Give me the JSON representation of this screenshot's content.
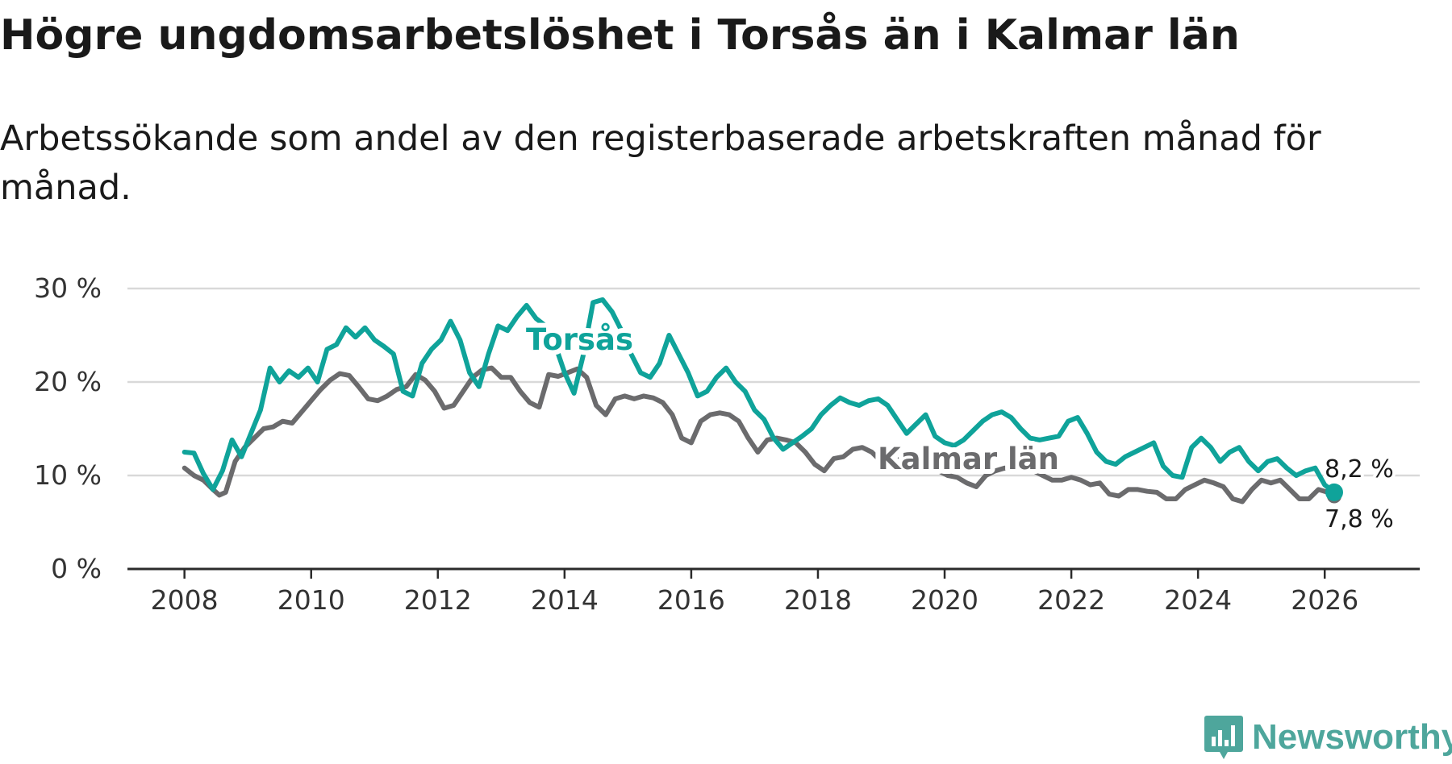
{
  "title": "Högre ungdomsarbetslöshet i Torsås än i Kalmar län",
  "subtitle": "Arbetssökande som andel av den registerbaserade arbetskraften månad för månad.",
  "brand": {
    "name": "Newsworthy",
    "color": "#4ea69c"
  },
  "chart_data": {
    "type": "line",
    "title": "Högre ungdomsarbetslöshet i Torsås än i Kalmar län",
    "subtitle": "Arbetssökande som andel av den registerbaserade arbetskraften månad för månad.",
    "xlabel": "",
    "ylabel": "",
    "xlim": [
      2007.1,
      2027.5
    ],
    "ylim": [
      0,
      30
    ],
    "x_ticks": [
      2008,
      2010,
      2012,
      2014,
      2016,
      2018,
      2020,
      2022,
      2024,
      2026
    ],
    "x_tick_labels": [
      "2008",
      "2010",
      "2012",
      "2014",
      "2016",
      "2018",
      "2020",
      "2022",
      "2024",
      "2026"
    ],
    "y_ticks": [
      0,
      10,
      20,
      30
    ],
    "y_tick_labels": [
      "0 %",
      "10 %",
      "20 %",
      "30 %"
    ],
    "grid": true,
    "series": [
      {
        "name": "Torsås",
        "color": "#0fa39a",
        "end_label": "8,2 %",
        "points": [
          [
            2008.0,
            12.5
          ],
          [
            2008.15,
            12.4
          ],
          [
            2008.3,
            10.2
          ],
          [
            2008.45,
            8.5
          ],
          [
            2008.6,
            10.5
          ],
          [
            2008.75,
            13.8
          ],
          [
            2008.9,
            12.0
          ],
          [
            2009.05,
            14.5
          ],
          [
            2009.2,
            17.0
          ],
          [
            2009.35,
            21.5
          ],
          [
            2009.5,
            20.0
          ],
          [
            2009.65,
            21.2
          ],
          [
            2009.8,
            20.5
          ],
          [
            2009.95,
            21.5
          ],
          [
            2010.1,
            20.0
          ],
          [
            2010.25,
            23.5
          ],
          [
            2010.4,
            24.0
          ],
          [
            2010.55,
            25.8
          ],
          [
            2010.7,
            24.8
          ],
          [
            2010.85,
            25.8
          ],
          [
            2011.0,
            24.5
          ],
          [
            2011.15,
            23.8
          ],
          [
            2011.3,
            23.0
          ],
          [
            2011.45,
            19.0
          ],
          [
            2011.6,
            18.5
          ],
          [
            2011.75,
            22.0
          ],
          [
            2011.9,
            23.5
          ],
          [
            2012.05,
            24.5
          ],
          [
            2012.2,
            26.5
          ],
          [
            2012.35,
            24.5
          ],
          [
            2012.5,
            21.0
          ],
          [
            2012.65,
            19.5
          ],
          [
            2012.8,
            23.0
          ],
          [
            2012.95,
            26.0
          ],
          [
            2013.1,
            25.5
          ],
          [
            2013.25,
            27.0
          ],
          [
            2013.4,
            28.2
          ],
          [
            2013.55,
            26.8
          ],
          [
            2013.7,
            26.0
          ],
          [
            2013.85,
            24.0
          ],
          [
            2014.0,
            21.0
          ],
          [
            2014.15,
            18.8
          ],
          [
            2014.3,
            23.0
          ],
          [
            2014.45,
            28.5
          ],
          [
            2014.6,
            28.8
          ],
          [
            2014.75,
            27.5
          ],
          [
            2014.9,
            25.5
          ],
          [
            2015.05,
            23.0
          ],
          [
            2015.2,
            21.0
          ],
          [
            2015.35,
            20.5
          ],
          [
            2015.5,
            22.0
          ],
          [
            2015.65,
            25.0
          ],
          [
            2015.8,
            23.0
          ],
          [
            2015.95,
            21.0
          ],
          [
            2016.1,
            18.5
          ],
          [
            2016.25,
            19.0
          ],
          [
            2016.4,
            20.5
          ],
          [
            2016.55,
            21.5
          ],
          [
            2016.7,
            20.0
          ],
          [
            2016.85,
            19.0
          ],
          [
            2017.0,
            17.0
          ],
          [
            2017.15,
            16.0
          ],
          [
            2017.3,
            14.0
          ],
          [
            2017.45,
            12.8
          ],
          [
            2017.6,
            13.5
          ],
          [
            2017.75,
            14.2
          ],
          [
            2017.9,
            15.0
          ],
          [
            2018.05,
            16.5
          ],
          [
            2018.2,
            17.5
          ],
          [
            2018.35,
            18.3
          ],
          [
            2018.5,
            17.8
          ],
          [
            2018.65,
            17.5
          ],
          [
            2018.8,
            18.0
          ],
          [
            2018.95,
            18.2
          ],
          [
            2019.1,
            17.5
          ],
          [
            2019.25,
            16.0
          ],
          [
            2019.4,
            14.5
          ],
          [
            2019.55,
            15.5
          ],
          [
            2019.7,
            16.5
          ],
          [
            2019.85,
            14.2
          ],
          [
            2020.0,
            13.5
          ],
          [
            2020.15,
            13.2
          ],
          [
            2020.3,
            13.8
          ],
          [
            2020.45,
            14.8
          ],
          [
            2020.6,
            15.8
          ],
          [
            2020.75,
            16.5
          ],
          [
            2020.9,
            16.8
          ],
          [
            2021.05,
            16.2
          ],
          [
            2021.2,
            15.0
          ],
          [
            2021.35,
            14.0
          ],
          [
            2021.5,
            13.8
          ],
          [
            2021.65,
            14.0
          ],
          [
            2021.8,
            14.2
          ],
          [
            2021.95,
            15.8
          ],
          [
            2022.1,
            16.2
          ],
          [
            2022.25,
            14.5
          ],
          [
            2022.4,
            12.5
          ],
          [
            2022.55,
            11.5
          ],
          [
            2022.7,
            11.2
          ],
          [
            2022.85,
            12.0
          ],
          [
            2023.0,
            12.5
          ],
          [
            2023.15,
            13.0
          ],
          [
            2023.3,
            13.5
          ],
          [
            2023.45,
            11.0
          ],
          [
            2023.6,
            10.0
          ],
          [
            2023.75,
            9.8
          ],
          [
            2023.9,
            13.0
          ],
          [
            2024.05,
            14.0
          ],
          [
            2024.2,
            13.0
          ],
          [
            2024.35,
            11.5
          ],
          [
            2024.5,
            12.5
          ],
          [
            2024.65,
            13.0
          ],
          [
            2024.8,
            11.5
          ],
          [
            2024.95,
            10.5
          ],
          [
            2025.1,
            11.5
          ],
          [
            2025.25,
            11.8
          ],
          [
            2025.4,
            10.8
          ],
          [
            2025.55,
            10.0
          ],
          [
            2025.7,
            10.5
          ],
          [
            2025.85,
            10.8
          ],
          [
            2026.0,
            9.0
          ],
          [
            2026.15,
            8.2
          ]
        ]
      },
      {
        "name": "Kalmar län",
        "color": "#6b6b6d",
        "end_label": "7,8 %",
        "points": [
          [
            2008.0,
            10.8
          ],
          [
            2008.15,
            10.0
          ],
          [
            2008.3,
            9.5
          ],
          [
            2008.45,
            8.5
          ],
          [
            2008.55,
            7.9
          ],
          [
            2008.65,
            8.2
          ],
          [
            2008.8,
            11.5
          ],
          [
            2008.95,
            13.0
          ],
          [
            2009.1,
            14.0
          ],
          [
            2009.25,
            15.0
          ],
          [
            2009.4,
            15.2
          ],
          [
            2009.55,
            15.8
          ],
          [
            2009.7,
            15.6
          ],
          [
            2009.85,
            16.8
          ],
          [
            2010.0,
            18.0
          ],
          [
            2010.15,
            19.2
          ],
          [
            2010.3,
            20.2
          ],
          [
            2010.45,
            20.9
          ],
          [
            2010.6,
            20.7
          ],
          [
            2010.75,
            19.5
          ],
          [
            2010.9,
            18.2
          ],
          [
            2011.05,
            18.0
          ],
          [
            2011.2,
            18.5
          ],
          [
            2011.35,
            19.2
          ],
          [
            2011.5,
            19.5
          ],
          [
            2011.65,
            20.8
          ],
          [
            2011.8,
            20.2
          ],
          [
            2011.95,
            19.0
          ],
          [
            2012.1,
            17.2
          ],
          [
            2012.25,
            17.5
          ],
          [
            2012.4,
            19.0
          ],
          [
            2012.55,
            20.5
          ],
          [
            2012.7,
            21.3
          ],
          [
            2012.85,
            21.5
          ],
          [
            2013.0,
            20.5
          ],
          [
            2013.15,
            20.5
          ],
          [
            2013.3,
            19.0
          ],
          [
            2013.45,
            17.8
          ],
          [
            2013.6,
            17.3
          ],
          [
            2013.75,
            20.8
          ],
          [
            2013.9,
            20.6
          ],
          [
            2014.05,
            21.0
          ],
          [
            2014.2,
            21.4
          ],
          [
            2014.35,
            20.5
          ],
          [
            2014.5,
            17.5
          ],
          [
            2014.65,
            16.5
          ],
          [
            2014.8,
            18.2
          ],
          [
            2014.95,
            18.5
          ],
          [
            2015.1,
            18.2
          ],
          [
            2015.25,
            18.5
          ],
          [
            2015.4,
            18.3
          ],
          [
            2015.55,
            17.8
          ],
          [
            2015.7,
            16.5
          ],
          [
            2015.85,
            14.0
          ],
          [
            2016.0,
            13.5
          ],
          [
            2016.15,
            15.8
          ],
          [
            2016.3,
            16.5
          ],
          [
            2016.45,
            16.7
          ],
          [
            2016.6,
            16.5
          ],
          [
            2016.75,
            15.8
          ],
          [
            2016.9,
            14.0
          ],
          [
            2017.05,
            12.5
          ],
          [
            2017.2,
            13.8
          ],
          [
            2017.35,
            14.0
          ],
          [
            2017.5,
            13.8
          ],
          [
            2017.65,
            13.5
          ],
          [
            2017.8,
            12.5
          ],
          [
            2017.95,
            11.2
          ],
          [
            2018.1,
            10.5
          ],
          [
            2018.25,
            11.8
          ],
          [
            2018.4,
            12.0
          ],
          [
            2018.55,
            12.8
          ],
          [
            2018.7,
            13.0
          ],
          [
            2018.85,
            12.5
          ],
          [
            2019.0,
            11.5
          ],
          [
            2019.15,
            10.8
          ],
          [
            2019.3,
            11.8
          ],
          [
            2019.45,
            12.5
          ],
          [
            2019.6,
            12.0
          ],
          [
            2019.75,
            11.5
          ],
          [
            2019.9,
            10.5
          ],
          [
            2020.05,
            10.0
          ],
          [
            2020.2,
            9.8
          ],
          [
            2020.35,
            9.2
          ],
          [
            2020.5,
            8.8
          ],
          [
            2020.65,
            10.0
          ],
          [
            2020.8,
            10.5
          ],
          [
            2020.95,
            10.8
          ],
          [
            2021.1,
            10.5
          ],
          [
            2021.25,
            11.0
          ],
          [
            2021.4,
            10.5
          ],
          [
            2021.55,
            10.0
          ],
          [
            2021.7,
            9.5
          ],
          [
            2021.85,
            9.5
          ],
          [
            2022.0,
            9.8
          ],
          [
            2022.15,
            9.5
          ],
          [
            2022.3,
            9.0
          ],
          [
            2022.45,
            9.2
          ],
          [
            2022.6,
            8.0
          ],
          [
            2022.75,
            7.8
          ],
          [
            2022.9,
            8.5
          ],
          [
            2023.05,
            8.5
          ],
          [
            2023.2,
            8.3
          ],
          [
            2023.35,
            8.2
          ],
          [
            2023.5,
            7.5
          ],
          [
            2023.65,
            7.5
          ],
          [
            2023.8,
            8.5
          ],
          [
            2023.95,
            9.0
          ],
          [
            2024.1,
            9.5
          ],
          [
            2024.25,
            9.2
          ],
          [
            2024.4,
            8.8
          ],
          [
            2024.55,
            7.5
          ],
          [
            2024.7,
            7.2
          ],
          [
            2024.85,
            8.5
          ],
          [
            2025.0,
            9.5
          ],
          [
            2025.15,
            9.2
          ],
          [
            2025.3,
            9.5
          ],
          [
            2025.45,
            8.5
          ],
          [
            2025.6,
            7.5
          ],
          [
            2025.75,
            7.5
          ],
          [
            2025.9,
            8.5
          ],
          [
            2026.05,
            8.2
          ],
          [
            2026.15,
            7.8
          ]
        ]
      }
    ]
  }
}
